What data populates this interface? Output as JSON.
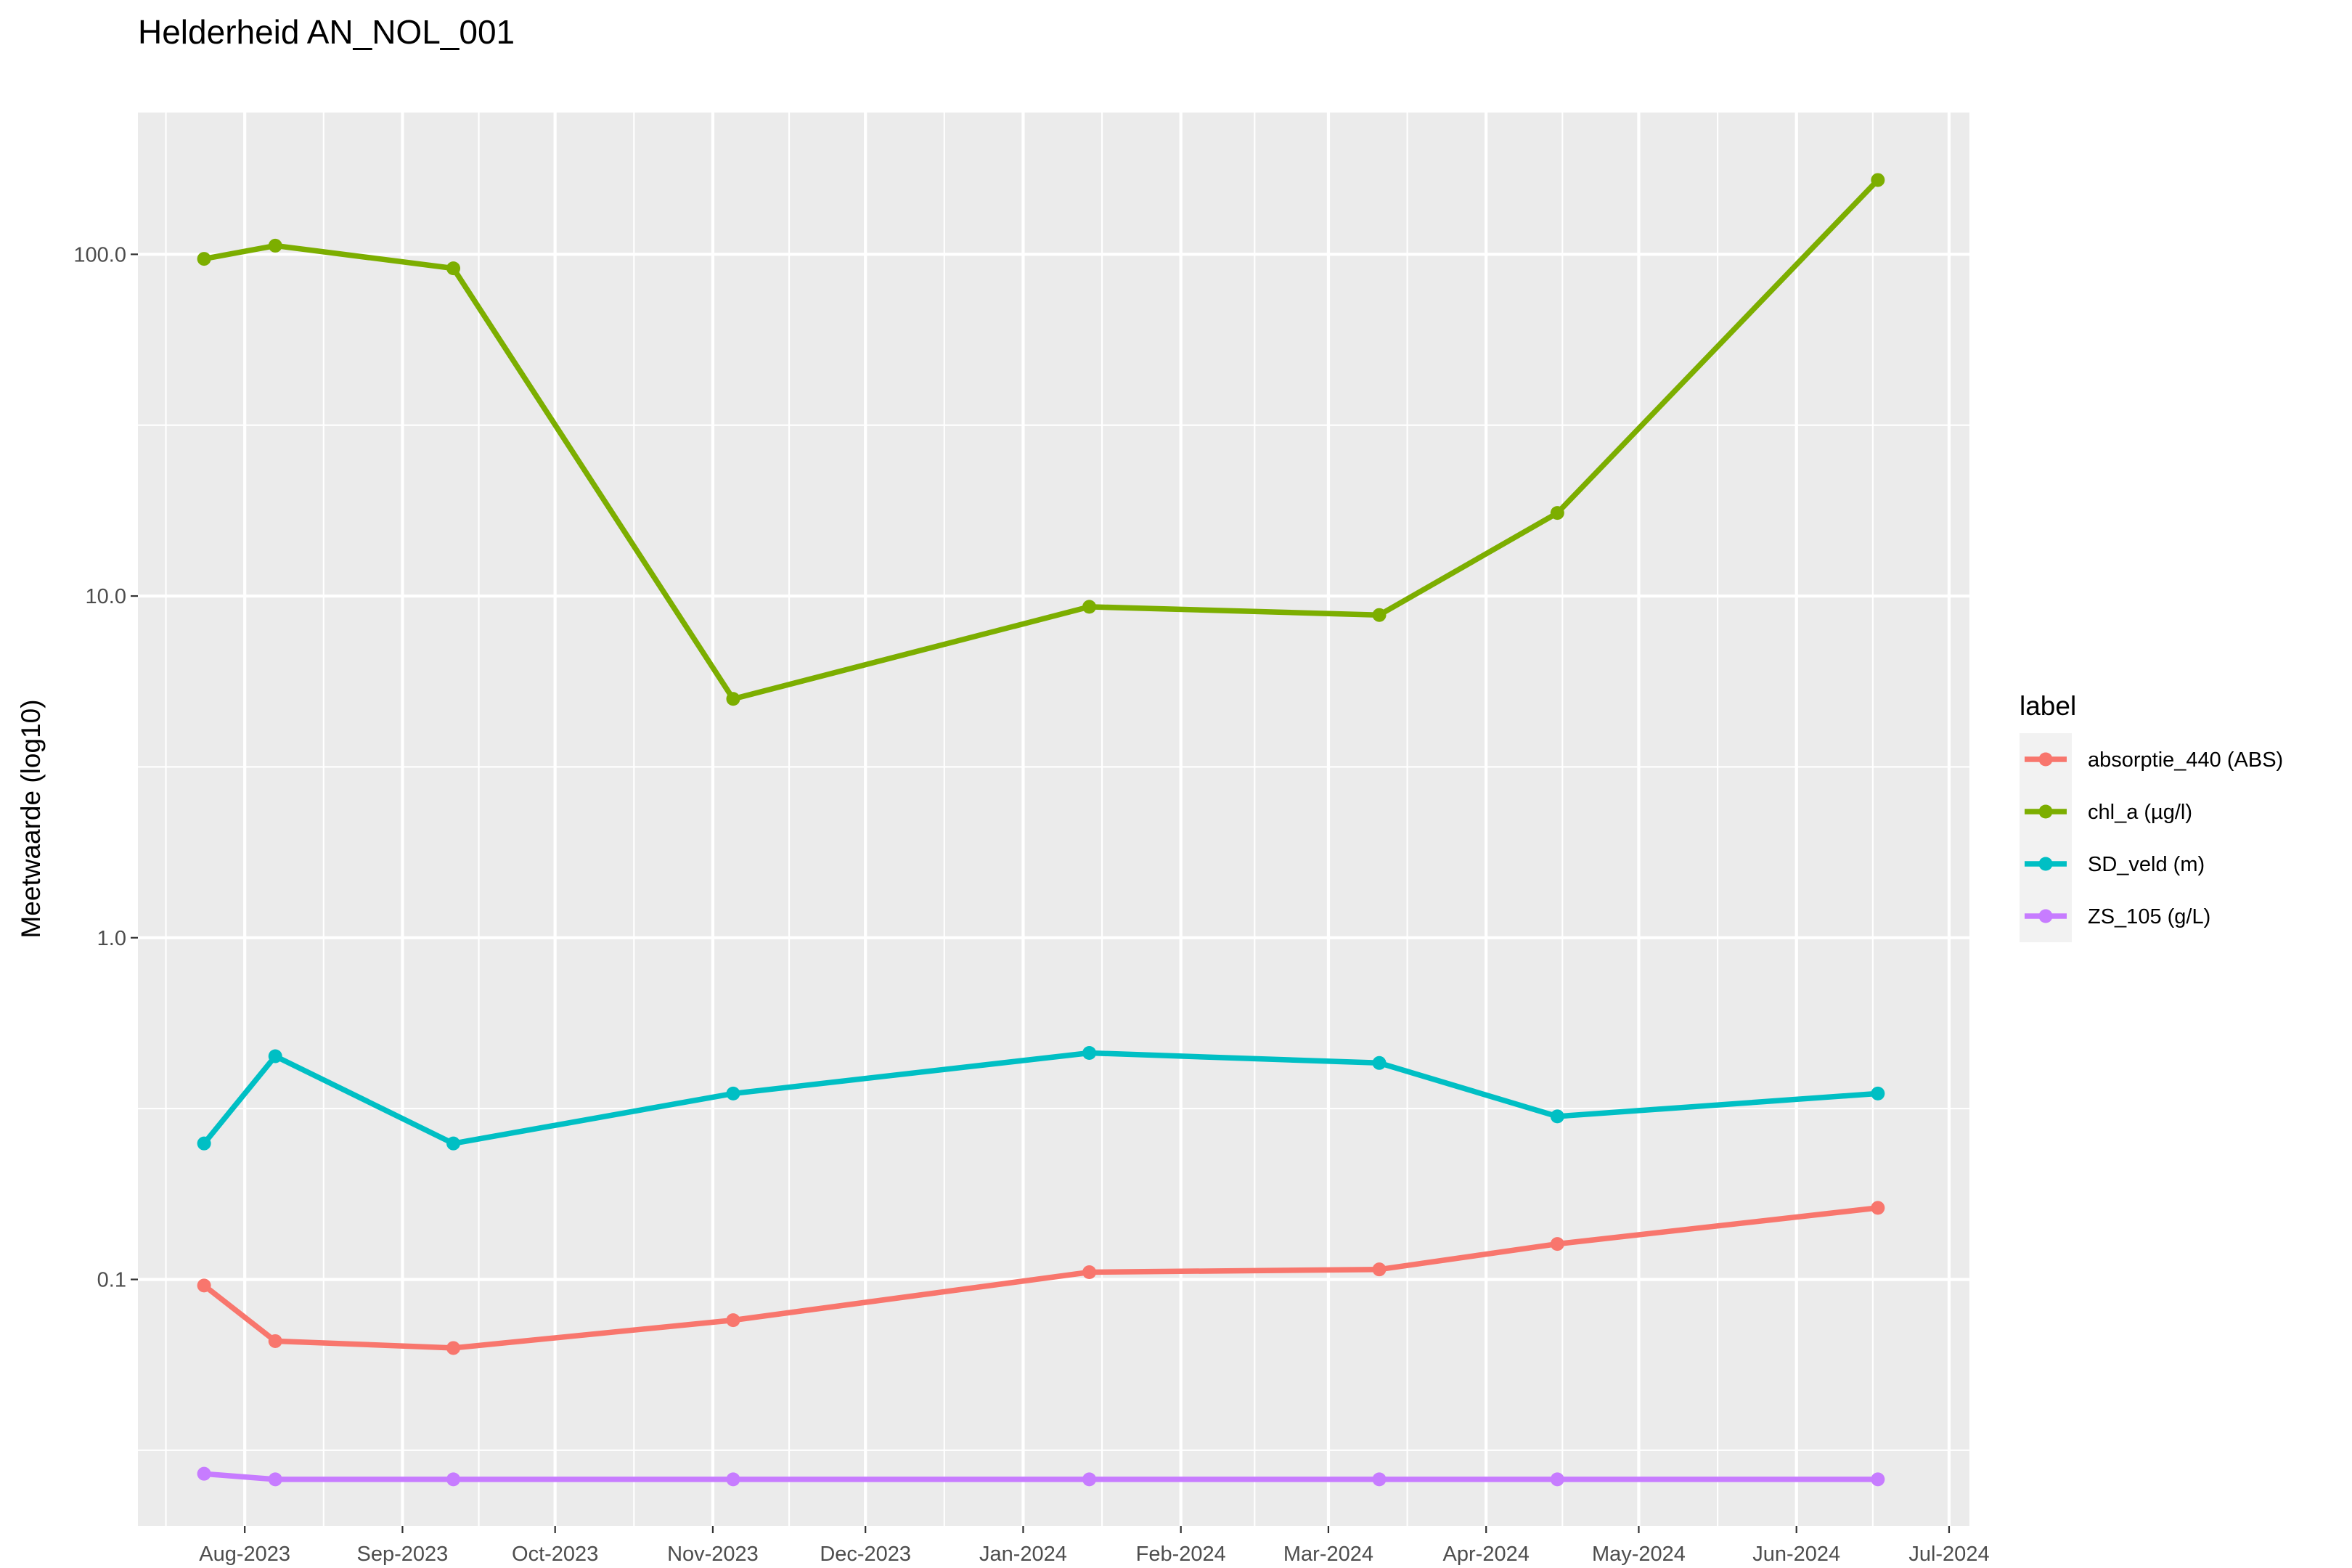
{
  "chart_data": {
    "type": "line",
    "title": "Helderheid AN_NOL_001",
    "xlabel": "",
    "ylabel": "Meetwaarde (log10)",
    "y_scale": "log10",
    "ylim": [
      0.019,
      260
    ],
    "xlim": [
      "2023-07-11",
      "2024-07-05"
    ],
    "y_ticks": [
      {
        "value": 0.1,
        "label": "0.1"
      },
      {
        "value": 1,
        "label": "1.0"
      },
      {
        "value": 10,
        "label": "10.0"
      },
      {
        "value": 100,
        "label": "100.0"
      }
    ],
    "x_ticks": [
      {
        "date": "2023-08-01",
        "label": "Aug-2023"
      },
      {
        "date": "2023-09-01",
        "label": "Sep-2023"
      },
      {
        "date": "2023-10-01",
        "label": "Oct-2023"
      },
      {
        "date": "2023-11-01",
        "label": "Nov-2023"
      },
      {
        "date": "2023-12-01",
        "label": "Dec-2023"
      },
      {
        "date": "2024-01-01",
        "label": "Jan-2024"
      },
      {
        "date": "2024-02-01",
        "label": "Feb-2024"
      },
      {
        "date": "2024-03-01",
        "label": "Mar-2024"
      },
      {
        "date": "2024-04-01",
        "label": "Apr-2024"
      },
      {
        "date": "2024-05-01",
        "label": "May-2024"
      },
      {
        "date": "2024-06-01",
        "label": "Jun-2024"
      },
      {
        "date": "2024-07-01",
        "label": "Jul-2024"
      }
    ],
    "grid": true,
    "legend": {
      "title": "label",
      "position": "right"
    },
    "x": [
      "2023-07-24",
      "2023-08-07",
      "2023-09-11",
      "2023-11-05",
      "2024-01-14",
      "2024-03-11",
      "2024-04-15",
      "2024-06-17"
    ],
    "series": [
      {
        "name": "absorptie_440 (ABS)",
        "color": "#F8766D",
        "values": [
          0.096,
          0.066,
          0.063,
          0.076,
          0.105,
          0.107,
          0.127,
          0.162
        ]
      },
      {
        "name": "chl_a (µg/l)",
        "color": "#7CAE00",
        "values": [
          97.0,
          106.0,
          91.0,
          5.0,
          9.3,
          8.8,
          17.5,
          165.0
        ]
      },
      {
        "name": "SD_veld (m)",
        "color": "#00BFC4",
        "values": [
          0.25,
          0.45,
          0.25,
          0.35,
          0.46,
          0.43,
          0.3,
          0.35
        ]
      },
      {
        "name": "ZS_105 (g/L)",
        "color": "#C77CFF",
        "values": [
          0.027,
          0.026,
          0.026,
          0.026,
          0.026,
          0.026,
          0.026,
          0.026
        ]
      }
    ]
  }
}
